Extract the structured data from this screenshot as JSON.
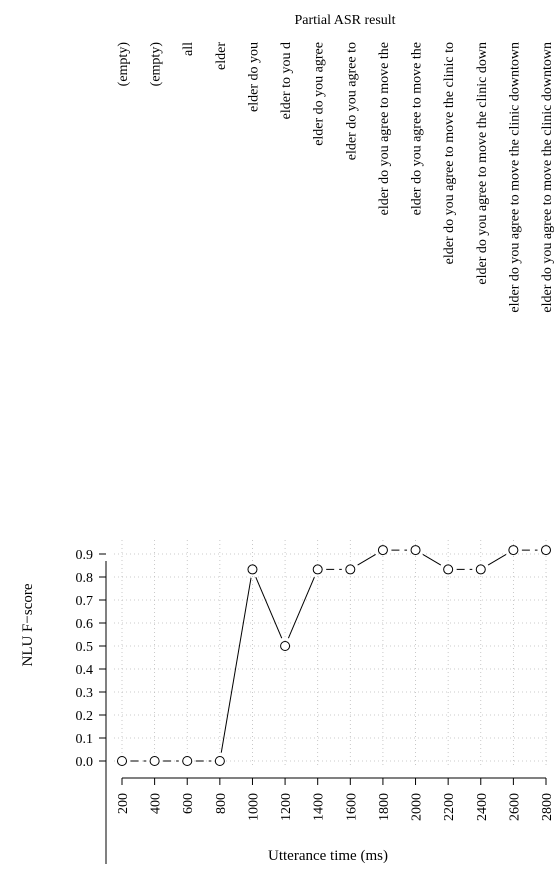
{
  "chart_data": {
    "type": "line",
    "top_axis_label": "Partial ASR result",
    "partial_asr": [
      "(empty)",
      "(empty)",
      "all",
      "elder",
      "elder do you",
      "elder to you d",
      "elder do you agree",
      "elder do you agree to",
      "elder do you agree to move the",
      "elder do you agree to move the",
      "elder do you agree to move the clinic to",
      "elder do you agree to move the clinic down",
      "elder do you agree to move the clinic downtown",
      "elder do you agree to move the clinic downtown"
    ],
    "x": [
      200,
      400,
      600,
      800,
      1000,
      1200,
      1400,
      1600,
      1800,
      2000,
      2200,
      2400,
      2600,
      2800
    ],
    "series": [
      {
        "values": [
          0.0,
          0.0,
          0.0,
          0.0,
          0.833,
          0.5,
          0.833,
          0.833,
          0.917,
          0.917,
          0.833,
          0.833,
          0.917,
          0.917
        ]
      }
    ],
    "xlabel": "Utterance time (ms)",
    "ylabel": "NLU F−score",
    "xticks": [
      "200",
      "400",
      "600",
      "800",
      "1000",
      "1200",
      "1400",
      "1600",
      "1800",
      "2000",
      "2200",
      "2400",
      "2600",
      "2800"
    ],
    "yticks": [
      "0.0",
      "0.1",
      "0.2",
      "0.3",
      "0.4",
      "0.5",
      "0.6",
      "0.7",
      "0.8",
      "0.9"
    ],
    "ylim": [
      0,
      0.92
    ],
    "xlim": [
      200,
      2800
    ],
    "grid": true,
    "marker": "open-circle",
    "colors": {
      "line": "#000000",
      "grid": "#bbbbbb"
    }
  }
}
